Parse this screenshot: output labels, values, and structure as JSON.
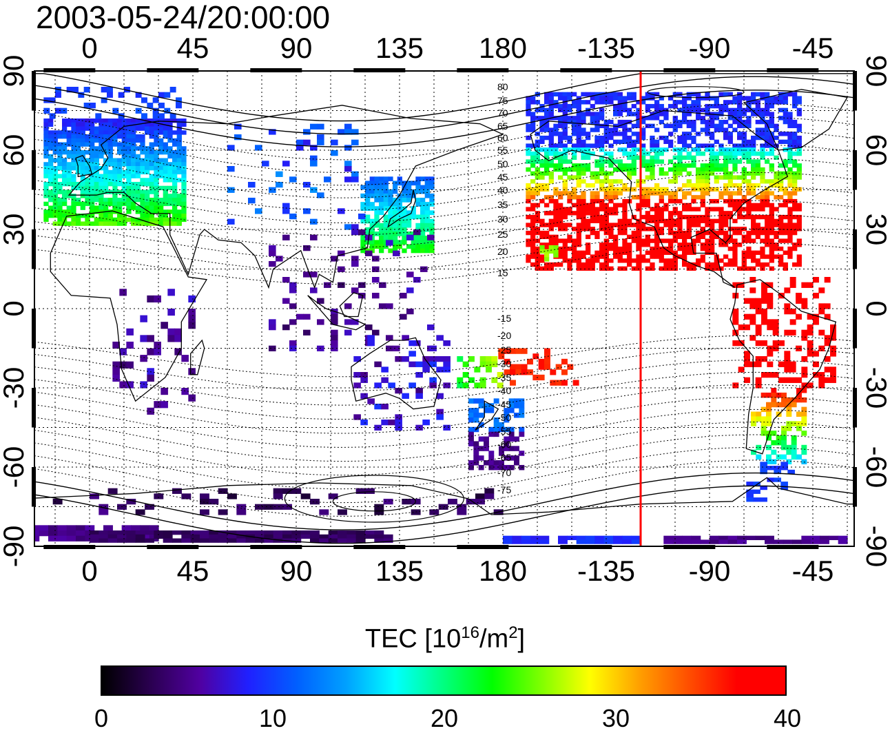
{
  "title": "2003-05-24/20:00:00",
  "map": {
    "lon_ticks_top": [
      "0",
      "45",
      "90",
      "135",
      "180",
      "-135",
      "-90",
      "-45"
    ],
    "lon_ticks_bottom": [
      "0",
      "45",
      "90",
      "135",
      "180",
      "-135",
      "-90",
      "-45"
    ],
    "lat_ticks_left": [
      "90",
      "60",
      "30",
      "0",
      "-30",
      "-60",
      "-90"
    ],
    "lat_ticks_right": [
      "90",
      "60",
      "30",
      "0",
      "-30",
      "-60",
      "-90"
    ],
    "subsolar_meridian_lon": -120,
    "marker_color": "#ff0000",
    "contour_labels_north": [
      "80",
      "75",
      "70",
      "65",
      "60",
      "55",
      "50",
      "45",
      "40",
      "35",
      "30",
      "25",
      "20",
      "15"
    ],
    "contour_labels_south": [
      "-15",
      "-20",
      "-25",
      "-30",
      "-35",
      "-40",
      "-45",
      "-50",
      "-55",
      "-60",
      "-65",
      "-70",
      "-75"
    ]
  },
  "colorbar": {
    "label_text": "TEC  [10",
    "label_exp": "16",
    "label_unit": "/m",
    "label_unit_exp": "2",
    "label_close": "]",
    "ticks": [
      "0",
      "10",
      "20",
      "30",
      "40"
    ],
    "range": [
      0,
      40
    ],
    "colors": [
      "#000000",
      "#2a0050",
      "#5000a0",
      "#2020ff",
      "#0060ff",
      "#00a0ff",
      "#00ffff",
      "#00ff80",
      "#00ff00",
      "#80ff00",
      "#ffff00",
      "#ffa000",
      "#ff5000",
      "#ff0000",
      "#ff0000"
    ]
  }
}
